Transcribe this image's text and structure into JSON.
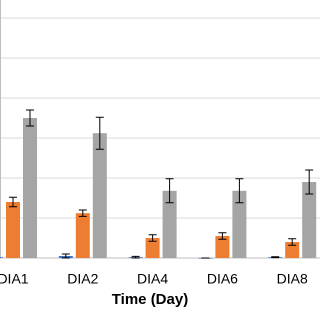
{
  "chart_data": {
    "type": "bar",
    "x_label": "Time (Day)",
    "categories": [
      "DIA1",
      "DIA2",
      "DIA4",
      "DIA6",
      "DIA8"
    ],
    "series": [
      {
        "color": "#4472c4",
        "values": [
          0.02,
          0.05,
          0.02,
          0,
          0.02
        ],
        "errors": [
          0.01,
          0.05,
          0.02,
          0,
          0.01
        ]
      },
      {
        "color": "#ed7d31",
        "values": [
          1.4,
          1.12,
          0.5,
          0.55,
          0.4
        ],
        "errors": [
          0.12,
          0.08,
          0.08,
          0.08,
          0.08
        ]
      },
      {
        "color": "#a5a5a5",
        "values": [
          3.5,
          3.12,
          1.68,
          1.68,
          1.9
        ],
        "errors": [
          0.2,
          0.4,
          0.3,
          0.3,
          0.3
        ]
      }
    ],
    "ylim": [
      0,
      6.45
    ],
    "yticks": [
      0,
      1,
      2,
      3,
      4,
      5,
      6
    ],
    "grid": true
  }
}
